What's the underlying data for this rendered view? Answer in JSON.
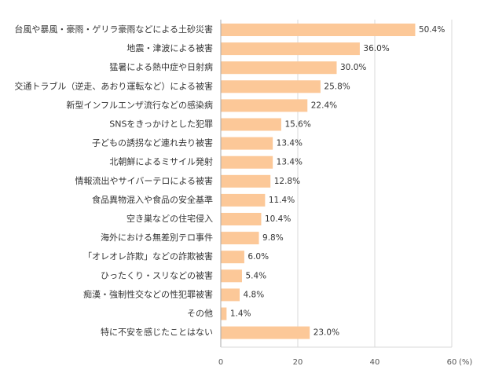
{
  "chart_data": {
    "type": "bar",
    "orientation": "horizontal",
    "categories": [
      "台風や暴風・豪雨・ゲリラ豪雨などによる土砂災害",
      "地震・津波による被害",
      "猛暑による熱中症や日射病",
      "交通トラブル（逆走、あおり運転など）による被害",
      "新型インフルエンザ流行などの感染病",
      "SNSをきっかけとした犯罪",
      "子どもの誘拐など連れ去り被害",
      "北朝鮮によるミサイル発射",
      "情報流出やサイバーテロによる被害",
      "食品異物混入や食品の安全基準",
      "空き巣などの住宅侵入",
      "海外における無差別テロ事件",
      "「オレオレ詐欺」などの詐欺被害",
      "ひったくり・スリなどの被害",
      "痴漢・強制性交などの性犯罪被害",
      "その他",
      "特に不安を感じたことはない"
    ],
    "values": [
      50.4,
      36.0,
      30.0,
      25.8,
      22.4,
      15.6,
      13.4,
      13.4,
      12.8,
      11.4,
      10.4,
      9.8,
      6.0,
      5.4,
      4.8,
      1.4,
      23.0
    ],
    "value_labels": [
      "50.4%",
      "36.0%",
      "30.0%",
      "25.8%",
      "22.4%",
      "15.6%",
      "13.4%",
      "13.4%",
      "12.8%",
      "11.4%",
      "10.4%",
      "9.8%",
      "6.0%",
      "5.4%",
      "4.8%",
      "1.4%",
      "23.0%"
    ],
    "xlim": [
      0,
      60
    ],
    "xticks": [
      0,
      20,
      40,
      60
    ],
    "x_unit": "(%)",
    "grid": true,
    "bar_color": "#fcc898",
    "grid_color": "#d9d9d9",
    "axis_color": "#aaaaaa"
  }
}
